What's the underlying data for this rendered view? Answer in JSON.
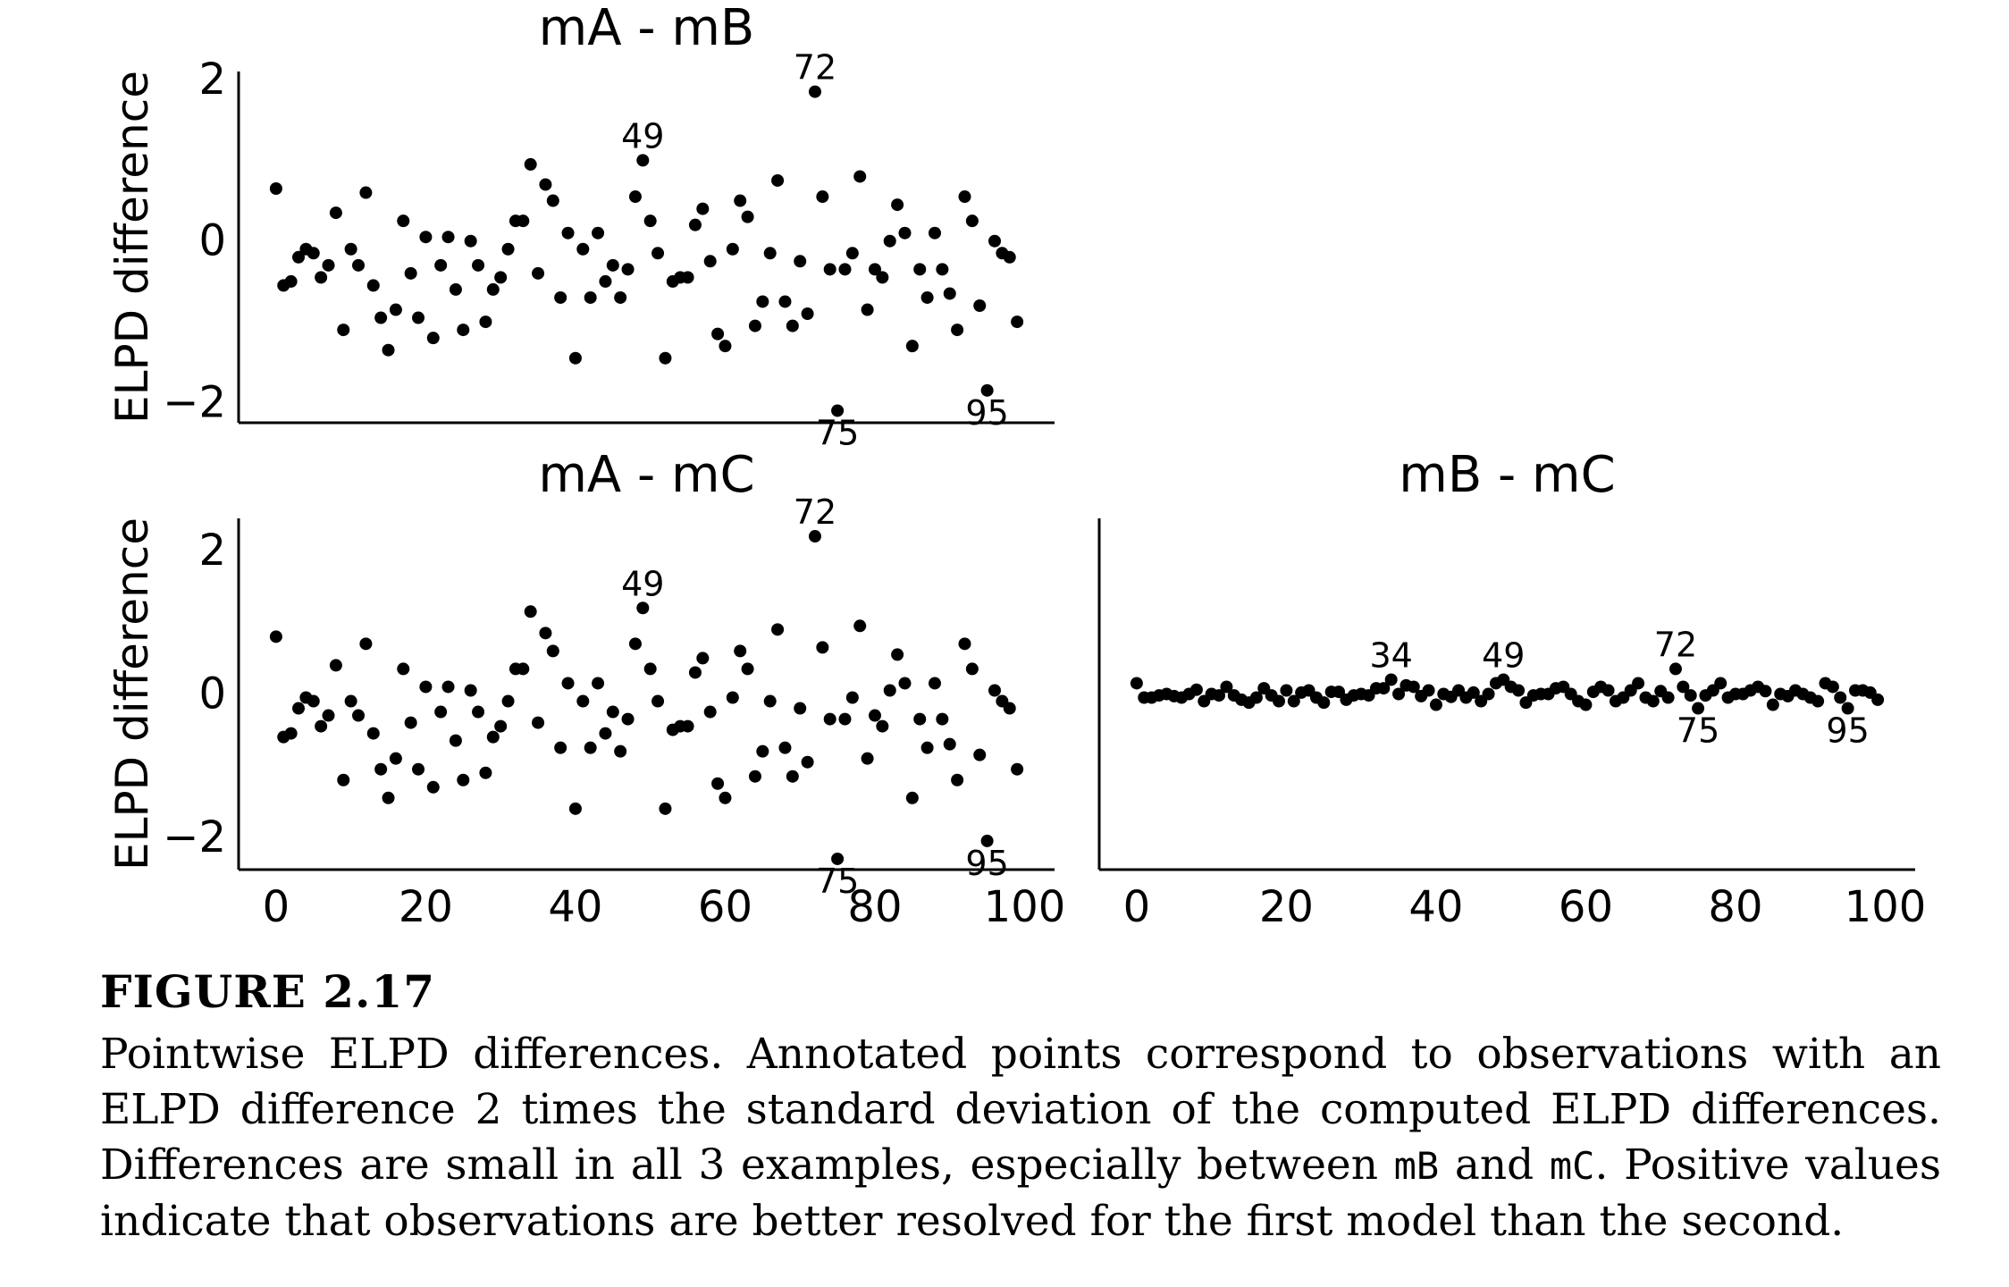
{
  "figure_label": "FIGURE 2.17",
  "caption": {
    "p1": "Pointwise ELPD differences. Annotated points correspond to observations with an ELPD difference 2 times the standard deviation of the computed ELPD differences. Differences are small in all 3 examples, especially between ",
    "code1": "mB",
    "p2": " and ",
    "code2": "mC",
    "p3": ". Positive values indicate that observations are better resolved for the first model than the second."
  },
  "chart_data": [
    {
      "type": "scatter",
      "title": "mA - mB",
      "ylabel": "ELPD difference",
      "xlabel": "",
      "xlim": [
        -5,
        104
      ],
      "ylim": [
        -2.25,
        2.1
      ],
      "xticks": [],
      "yticks": [
        -2,
        0,
        2
      ],
      "show_xticks": false,
      "grid": false,
      "x": [
        0,
        1,
        2,
        3,
        4,
        5,
        6,
        7,
        8,
        9,
        10,
        11,
        12,
        13,
        14,
        15,
        16,
        17,
        18,
        19,
        20,
        21,
        22,
        23,
        24,
        25,
        26,
        27,
        28,
        29,
        30,
        31,
        32,
        33,
        34,
        35,
        36,
        37,
        38,
        39,
        40,
        41,
        42,
        43,
        44,
        45,
        46,
        47,
        48,
        49,
        50,
        51,
        52,
        53,
        54,
        55,
        56,
        57,
        58,
        59,
        60,
        61,
        62,
        63,
        64,
        65,
        66,
        67,
        68,
        69,
        70,
        71,
        72,
        73,
        74,
        75,
        76,
        77,
        78,
        79,
        80,
        81,
        82,
        83,
        84,
        85,
        86,
        87,
        88,
        89,
        90,
        91,
        92,
        93,
        94,
        95,
        96,
        97,
        98,
        99
      ],
      "y": [
        0.65,
        -0.55,
        -0.5,
        -0.2,
        -0.1,
        -0.15,
        -0.45,
        -0.3,
        0.35,
        -1.1,
        -0.1,
        -0.3,
        0.6,
        -0.55,
        -0.95,
        -1.35,
        -0.85,
        0.25,
        -0.4,
        -0.95,
        0.05,
        -1.2,
        -0.3,
        0.05,
        -0.6,
        -1.1,
        0.0,
        -0.3,
        -1.0,
        -0.6,
        -0.45,
        -0.1,
        0.25,
        0.25,
        0.95,
        -0.4,
        0.7,
        0.5,
        -0.7,
        0.1,
        -1.45,
        -0.1,
        -0.7,
        0.1,
        -0.5,
        -0.3,
        -0.7,
        -0.35,
        0.55,
        1.0,
        0.25,
        -0.15,
        -1.45,
        -0.5,
        -0.45,
        -0.45,
        0.2,
        0.4,
        -0.25,
        -1.15,
        -1.3,
        -0.1,
        0.5,
        0.3,
        -1.05,
        -0.75,
        -0.15,
        0.75,
        -0.75,
        -1.05,
        -0.25,
        -0.9,
        1.85,
        0.55,
        -0.35,
        -2.1,
        -0.35,
        -0.15,
        0.8,
        -0.85,
        -0.35,
        -0.45,
        0.0,
        0.45,
        0.1,
        -1.3,
        -0.35,
        -0.7,
        0.1,
        -0.35,
        -0.65,
        -1.1,
        0.55,
        0.25,
        -0.8,
        -1.85,
        0.0,
        -0.15,
        -0.2,
        -1.0
      ],
      "annotations": [
        {
          "label": "49",
          "x": 49,
          "y": 1.0,
          "pos": "above"
        },
        {
          "label": "72",
          "x": 72,
          "y": 1.85,
          "pos": "above"
        },
        {
          "label": "75",
          "x": 75,
          "y": -2.1,
          "pos": "below"
        },
        {
          "label": "95",
          "x": 95,
          "y": -1.85,
          "pos": "below"
        }
      ]
    },
    {
      "type": "scatter",
      "title": "mA - mC",
      "ylabel": "ELPD difference",
      "xlabel": "",
      "xlim": [
        -5,
        104
      ],
      "ylim": [
        -2.45,
        2.45
      ],
      "xticks": [
        0,
        20,
        40,
        60,
        80,
        100
      ],
      "yticks": [
        -2,
        0,
        2
      ],
      "show_xticks": true,
      "grid": false,
      "x": [
        0,
        1,
        2,
        3,
        4,
        5,
        6,
        7,
        8,
        9,
        10,
        11,
        12,
        13,
        14,
        15,
        16,
        17,
        18,
        19,
        20,
        21,
        22,
        23,
        24,
        25,
        26,
        27,
        28,
        29,
        30,
        31,
        32,
        33,
        34,
        35,
        36,
        37,
        38,
        39,
        40,
        41,
        42,
        43,
        44,
        45,
        46,
        47,
        48,
        49,
        50,
        51,
        52,
        53,
        54,
        55,
        56,
        57,
        58,
        59,
        60,
        61,
        62,
        63,
        64,
        65,
        66,
        67,
        68,
        69,
        70,
        71,
        72,
        73,
        74,
        75,
        76,
        77,
        78,
        79,
        80,
        81,
        82,
        83,
        84,
        85,
        86,
        87,
        88,
        89,
        90,
        91,
        92,
        93,
        94,
        95,
        96,
        97,
        98,
        99
      ],
      "y": [
        0.8,
        -0.6,
        -0.55,
        -0.2,
        -0.05,
        -0.1,
        -0.45,
        -0.3,
        0.4,
        -1.2,
        -0.1,
        -0.3,
        0.7,
        -0.55,
        -1.05,
        -1.45,
        -0.9,
        0.35,
        -0.4,
        -1.05,
        0.1,
        -1.3,
        -0.25,
        0.1,
        -0.65,
        -1.2,
        0.05,
        -0.25,
        -1.1,
        -0.6,
        -0.45,
        -0.1,
        0.35,
        0.35,
        1.15,
        -0.4,
        0.85,
        0.6,
        -0.75,
        0.15,
        -1.6,
        -0.1,
        -0.75,
        0.15,
        -0.55,
        -0.25,
        -0.8,
        -0.35,
        0.7,
        1.2,
        0.35,
        -0.1,
        -1.6,
        -0.5,
        -0.45,
        -0.45,
        0.3,
        0.5,
        -0.25,
        -1.25,
        -1.45,
        -0.05,
        0.6,
        0.35,
        -1.15,
        -0.8,
        -0.1,
        0.9,
        -0.75,
        -1.15,
        -0.2,
        -0.95,
        2.2,
        0.65,
        -0.35,
        -2.3,
        -0.35,
        -0.05,
        0.95,
        -0.9,
        -0.3,
        -0.45,
        0.05,
        0.55,
        0.15,
        -1.45,
        -0.35,
        -0.75,
        0.15,
        -0.35,
        -0.7,
        -1.2,
        0.7,
        0.35,
        -0.85,
        -2.05,
        0.05,
        -0.1,
        -0.2,
        -1.05
      ],
      "annotations": [
        {
          "label": "49",
          "x": 49,
          "y": 1.2,
          "pos": "above"
        },
        {
          "label": "72",
          "x": 72,
          "y": 2.2,
          "pos": "above"
        },
        {
          "label": "75",
          "x": 75,
          "y": -2.3,
          "pos": "below"
        },
        {
          "label": "95",
          "x": 95,
          "y": -2.05,
          "pos": "below"
        }
      ]
    },
    {
      "type": "scatter",
      "title": "mB - mC",
      "ylabel": "",
      "xlabel": "",
      "xlim": [
        -5,
        104
      ],
      "ylim": [
        -2.45,
        2.45
      ],
      "xticks": [
        0,
        20,
        40,
        60,
        80,
        100
      ],
      "yticks": [],
      "show_xticks": true,
      "grid": false,
      "x": [
        0,
        1,
        2,
        3,
        4,
        5,
        6,
        7,
        8,
        9,
        10,
        11,
        12,
        13,
        14,
        15,
        16,
        17,
        18,
        19,
        20,
        21,
        22,
        23,
        24,
        25,
        26,
        27,
        28,
        29,
        30,
        31,
        32,
        33,
        34,
        35,
        36,
        37,
        38,
        39,
        40,
        41,
        42,
        43,
        44,
        45,
        46,
        47,
        48,
        49,
        50,
        51,
        52,
        53,
        54,
        55,
        56,
        57,
        58,
        59,
        60,
        61,
        62,
        63,
        64,
        65,
        66,
        67,
        68,
        69,
        70,
        71,
        72,
        73,
        74,
        75,
        76,
        77,
        78,
        79,
        80,
        81,
        82,
        83,
        84,
        85,
        86,
        87,
        88,
        89,
        90,
        91,
        92,
        93,
        94,
        95,
        96,
        97,
        98,
        99
      ],
      "y": [
        0.15,
        -0.05,
        -0.05,
        -0.02,
        0.0,
        -0.03,
        -0.05,
        0.0,
        0.06,
        -0.1,
        0.0,
        -0.02,
        0.1,
        -0.02,
        -0.08,
        -0.12,
        -0.05,
        0.08,
        -0.02,
        -0.1,
        0.05,
        -0.1,
        0.02,
        0.05,
        -0.05,
        -0.12,
        0.03,
        0.03,
        -0.08,
        -0.02,
        0.0,
        -0.02,
        0.08,
        0.08,
        0.2,
        0.0,
        0.12,
        0.1,
        -0.03,
        0.05,
        -0.15,
        0.0,
        -0.04,
        0.05,
        -0.05,
        0.02,
        -0.1,
        0.0,
        0.15,
        0.2,
        0.1,
        0.05,
        -0.12,
        -0.02,
        0.0,
        0.0,
        0.08,
        0.1,
        0.0,
        -0.1,
        -0.15,
        0.03,
        0.1,
        0.05,
        -0.1,
        -0.05,
        0.05,
        0.15,
        -0.05,
        -0.1,
        0.04,
        -0.05,
        0.35,
        0.1,
        -0.02,
        -0.2,
        -0.02,
        0.05,
        0.15,
        -0.05,
        0.0,
        0.0,
        0.05,
        0.1,
        0.04,
        -0.15,
        0.0,
        -0.03,
        0.05,
        0.0,
        -0.05,
        -0.1,
        0.15,
        0.1,
        -0.05,
        -0.2,
        0.05,
        0.05,
        0.02,
        -0.08
      ],
      "annotations": [
        {
          "label": "34",
          "x": 34,
          "y": 0.2,
          "pos": "above"
        },
        {
          "label": "49",
          "x": 49,
          "y": 0.2,
          "pos": "above"
        },
        {
          "label": "72",
          "x": 72,
          "y": 0.35,
          "pos": "above"
        },
        {
          "label": "75",
          "x": 75,
          "y": -0.2,
          "pos": "below"
        },
        {
          "label": "95",
          "x": 95,
          "y": -0.2,
          "pos": "below"
        }
      ]
    }
  ]
}
